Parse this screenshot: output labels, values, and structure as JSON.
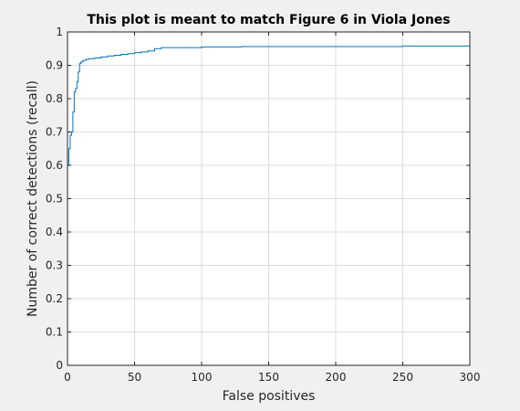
{
  "chart_data": {
    "type": "line",
    "title": "This plot is meant to match Figure 6 in Viola Jones",
    "xlabel": "False positives",
    "ylabel": "Number of correct detections (recall)",
    "xlim": [
      0,
      300
    ],
    "ylim": [
      0,
      1
    ],
    "xticks": [
      "0",
      "50",
      "100",
      "150",
      "200",
      "250",
      "300"
    ],
    "yticks": [
      "0",
      "0.1",
      "0.2",
      "0.3",
      "0.4",
      "0.5",
      "0.6",
      "0.7",
      "0.8",
      "0.9",
      "1"
    ],
    "grid": true,
    "line_color": "#0072bd",
    "series": [
      {
        "x": [
          0,
          0,
          1,
          1,
          2,
          2,
          3,
          3,
          4,
          4,
          5,
          5,
          6,
          6,
          7,
          7,
          8,
          8,
          9,
          9,
          10,
          10,
          11,
          11,
          12,
          12,
          14,
          14,
          16,
          16,
          20,
          20,
          25,
          25,
          30,
          30,
          35,
          35,
          40,
          40,
          45,
          45,
          50,
          50,
          55,
          55,
          60,
          60,
          65,
          65,
          70,
          70,
          100,
          100,
          130,
          130,
          250,
          250,
          300
        ],
        "y": [
          0,
          0.6,
          0.6,
          0.65,
          0.65,
          0.69,
          0.69,
          0.7,
          0.7,
          0.76,
          0.76,
          0.82,
          0.82,
          0.83,
          0.83,
          0.85,
          0.85,
          0.88,
          0.88,
          0.905,
          0.905,
          0.91,
          0.91,
          0.912,
          0.912,
          0.915,
          0.915,
          0.918,
          0.918,
          0.92,
          0.92,
          0.922,
          0.922,
          0.925,
          0.925,
          0.928,
          0.928,
          0.93,
          0.93,
          0.933,
          0.933,
          0.935,
          0.935,
          0.938,
          0.938,
          0.94,
          0.94,
          0.943,
          0.943,
          0.95,
          0.95,
          0.953,
          0.953,
          0.955,
          0.955,
          0.956,
          0.956,
          0.958,
          0.958
        ]
      }
    ]
  }
}
